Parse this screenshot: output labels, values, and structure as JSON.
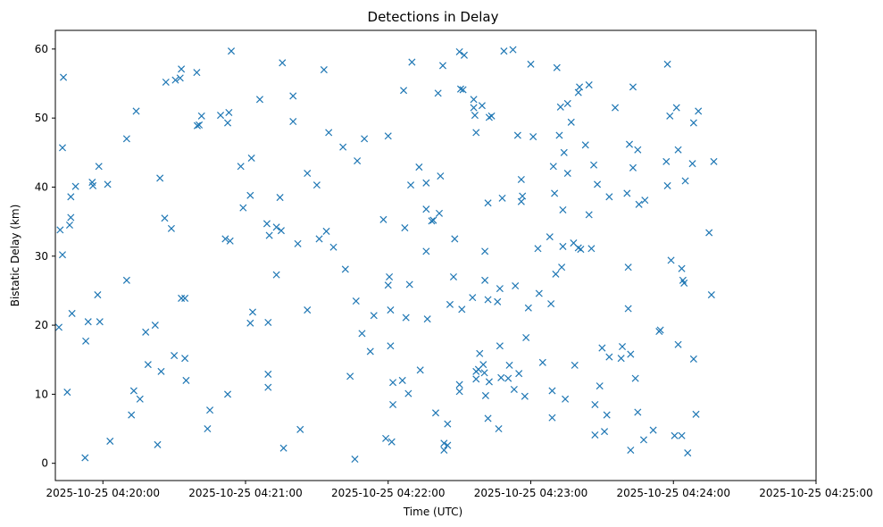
{
  "chart_data": {
    "type": "scatter",
    "title": "Detections in Delay",
    "xlabel": "Time (UTC)",
    "ylabel": "Bistatic Delay (km)",
    "x_unit": "seconds after 2025-10-25 04:20:00 UTC",
    "xlim": [
      -20,
      300
    ],
    "ylim": [
      -2.5,
      62.7
    ],
    "x_ticks": [
      {
        "value": 0,
        "label": "2025-10-25 04:20:00"
      },
      {
        "value": 60,
        "label": "2025-10-25 04:21:00"
      },
      {
        "value": 120,
        "label": "2025-10-25 04:22:00"
      },
      {
        "value": 180,
        "label": "2025-10-25 04:23:00"
      },
      {
        "value": 240,
        "label": "2025-10-25 04:24:00"
      },
      {
        "value": 300,
        "label": "2025-10-25 04:25:00"
      }
    ],
    "y_ticks": [
      {
        "value": 0,
        "label": "0"
      },
      {
        "value": 10,
        "label": "10"
      },
      {
        "value": 20,
        "label": "20"
      },
      {
        "value": 30,
        "label": "30"
      },
      {
        "value": 40,
        "label": "40"
      },
      {
        "value": 50,
        "label": "50"
      },
      {
        "value": 60,
        "label": "60"
      }
    ],
    "marker": "x",
    "color": "#1f77b4",
    "series": [
      {
        "name": "Detections",
        "points": [
          [
            -18.5,
            19.7
          ],
          [
            -18,
            33.8
          ],
          [
            -17,
            30.2
          ],
          [
            -17,
            45.7
          ],
          [
            -16.6,
            55.9
          ],
          [
            -15,
            10.3
          ],
          [
            -14,
            34.5
          ],
          [
            -13.5,
            35.6
          ],
          [
            -13.5,
            38.6
          ],
          [
            -13,
            21.7
          ],
          [
            -11.5,
            40.1
          ],
          [
            -7.5,
            0.8
          ],
          [
            -7.2,
            17.7
          ],
          [
            -6.2,
            20.5
          ],
          [
            -4.5,
            40.7
          ],
          [
            -4.2,
            40.2
          ],
          [
            -2.2,
            24.4
          ],
          [
            -1.7,
            43
          ],
          [
            -1.3,
            20.5
          ],
          [
            2,
            40.4
          ],
          [
            3,
            3.2
          ],
          [
            10,
            47
          ],
          [
            10,
            26.5
          ],
          [
            12,
            7
          ],
          [
            13,
            10.5
          ],
          [
            14,
            51
          ],
          [
            15.6,
            9.3
          ],
          [
            18,
            19
          ],
          [
            19,
            14.3
          ],
          [
            22,
            20
          ],
          [
            23,
            2.7
          ],
          [
            24,
            41.3
          ],
          [
            24.5,
            13.3
          ],
          [
            26,
            35.5
          ],
          [
            26.5,
            55.2
          ],
          [
            28.8,
            34
          ],
          [
            30,
            15.6
          ],
          [
            30.5,
            55.5
          ],
          [
            32.5,
            55.8
          ],
          [
            33,
            57.1
          ],
          [
            33,
            23.9
          ],
          [
            34.5,
            23.9
          ],
          [
            34.5,
            15.2
          ],
          [
            35,
            12
          ],
          [
            39.5,
            56.6
          ],
          [
            39.7,
            48.9
          ],
          [
            40.5,
            49
          ],
          [
            41.5,
            50.3
          ],
          [
            44,
            5
          ],
          [
            45,
            7.7
          ],
          [
            49.5,
            50.4
          ],
          [
            51.5,
            32.5
          ],
          [
            52.5,
            49.3
          ],
          [
            52.5,
            10
          ],
          [
            53,
            50.8
          ],
          [
            53.5,
            32.2
          ],
          [
            54,
            59.7
          ],
          [
            58,
            43
          ],
          [
            59,
            37
          ],
          [
            62,
            20.3
          ],
          [
            62,
            38.8
          ],
          [
            62.5,
            44.2
          ],
          [
            63,
            21.9
          ],
          [
            66,
            52.7
          ],
          [
            69,
            34.7
          ],
          [
            69.5,
            20.4
          ],
          [
            69.5,
            12.9
          ],
          [
            69.5,
            11
          ],
          [
            70,
            33
          ],
          [
            73,
            27.3
          ],
          [
            73,
            34.2
          ],
          [
            74.5,
            38.5
          ],
          [
            75,
            33.7
          ],
          [
            75.5,
            58
          ],
          [
            76,
            2.2
          ],
          [
            80,
            53.2
          ],
          [
            80,
            49.5
          ],
          [
            82,
            31.8
          ],
          [
            83,
            4.9
          ],
          [
            86,
            22.2
          ],
          [
            86,
            42
          ],
          [
            90,
            40.3
          ],
          [
            91,
            32.5
          ],
          [
            93,
            57
          ],
          [
            94,
            33.6
          ],
          [
            95,
            47.9
          ],
          [
            97,
            31.3
          ],
          [
            101,
            45.8
          ],
          [
            102,
            28.1
          ],
          [
            104,
            12.6
          ],
          [
            106,
            0.6
          ],
          [
            106.5,
            23.5
          ],
          [
            107,
            43.8
          ],
          [
            109,
            18.8
          ],
          [
            110,
            47
          ],
          [
            112.5,
            16.2
          ],
          [
            114,
            21.4
          ],
          [
            118,
            35.3
          ],
          [
            119,
            3.6
          ],
          [
            120,
            47.4
          ],
          [
            120,
            25.8
          ],
          [
            120.5,
            27
          ],
          [
            121,
            22.2
          ],
          [
            121,
            17
          ],
          [
            121.5,
            3.1
          ],
          [
            122,
            8.5
          ],
          [
            122,
            11.7
          ],
          [
            126,
            12
          ],
          [
            126.5,
            54
          ],
          [
            127,
            34.1
          ],
          [
            127.5,
            21.1
          ],
          [
            128.5,
            10.1
          ],
          [
            129,
            25.9
          ],
          [
            129.5,
            40.3
          ],
          [
            130,
            58.1
          ],
          [
            133,
            42.9
          ],
          [
            133.5,
            13.5
          ],
          [
            136,
            40.6
          ],
          [
            136,
            36.8
          ],
          [
            136,
            30.7
          ],
          [
            136.5,
            20.9
          ],
          [
            138.3,
            35.1
          ],
          [
            139,
            35.2
          ],
          [
            140,
            7.3
          ],
          [
            141,
            53.6
          ],
          [
            141.5,
            36.2
          ],
          [
            142,
            41.6
          ],
          [
            143,
            57.6
          ],
          [
            143.5,
            2.9
          ],
          [
            143.5,
            1.9
          ],
          [
            145,
            2.6
          ],
          [
            145,
            5.7
          ],
          [
            146,
            23
          ],
          [
            147.5,
            27
          ],
          [
            148,
            32.5
          ],
          [
            150,
            59.6
          ],
          [
            150,
            11.4
          ],
          [
            150,
            10.4
          ],
          [
            150.5,
            54.2
          ],
          [
            151,
            22.3
          ],
          [
            151.5,
            54.1
          ],
          [
            152,
            59.1
          ],
          [
            155.5,
            24
          ],
          [
            156,
            52.7
          ],
          [
            156,
            51.5
          ],
          [
            156.5,
            50.4
          ],
          [
            157,
            47.9
          ],
          [
            157,
            13.3
          ],
          [
            157,
            12.2
          ],
          [
            158,
            13.6
          ],
          [
            158.5,
            15.9
          ],
          [
            159.5,
            51.8
          ],
          [
            160,
            14.3
          ],
          [
            160.5,
            13.1
          ],
          [
            160.7,
            30.7
          ],
          [
            160.7,
            26.5
          ],
          [
            161,
            9.8
          ],
          [
            162,
            37.7
          ],
          [
            162,
            23.7
          ],
          [
            162,
            6.5
          ],
          [
            162.5,
            11.8
          ],
          [
            162.5,
            50.1
          ],
          [
            163.5,
            50.3
          ],
          [
            166,
            23.4
          ],
          [
            166.5,
            5
          ],
          [
            167,
            25.3
          ],
          [
            167,
            17
          ],
          [
            167.5,
            12.4
          ],
          [
            168,
            38.4
          ],
          [
            168.7,
            59.7
          ],
          [
            170.5,
            12.3
          ],
          [
            171,
            14.2
          ],
          [
            172.5,
            59.9
          ],
          [
            173,
            10.7
          ],
          [
            173.5,
            25.7
          ],
          [
            174.5,
            47.5
          ],
          [
            175,
            13
          ],
          [
            176,
            41.1
          ],
          [
            176,
            37.9
          ],
          [
            176.5,
            38.7
          ],
          [
            177.5,
            9.7
          ],
          [
            178,
            18.2
          ],
          [
            179,
            22.5
          ],
          [
            180,
            57.8
          ],
          [
            181,
            47.3
          ],
          [
            183,
            31.1
          ],
          [
            183.5,
            24.6
          ],
          [
            185,
            14.6
          ],
          [
            188,
            32.8
          ],
          [
            188.5,
            23.1
          ],
          [
            189,
            10.5
          ],
          [
            189,
            6.6
          ],
          [
            189.5,
            43
          ],
          [
            190,
            39.1
          ],
          [
            190.5,
            27.4
          ],
          [
            191,
            57.3
          ],
          [
            192,
            47.5
          ],
          [
            192.5,
            51.6
          ],
          [
            193,
            28.4
          ],
          [
            193.5,
            36.7
          ],
          [
            193.5,
            31.4
          ],
          [
            194,
            45
          ],
          [
            194.5,
            9.3
          ],
          [
            195.5,
            52.1
          ],
          [
            195.5,
            42
          ],
          [
            197,
            49.4
          ],
          [
            198,
            31.9
          ],
          [
            198.5,
            14.2
          ],
          [
            200,
            53.7
          ],
          [
            200,
            31.2
          ],
          [
            200.5,
            54.5
          ],
          [
            201,
            31
          ],
          [
            203,
            46.1
          ],
          [
            204.5,
            54.8
          ],
          [
            204.5,
            36
          ],
          [
            205.5,
            31.1
          ],
          [
            206.5,
            43.2
          ],
          [
            207,
            8.5
          ],
          [
            207,
            4.1
          ],
          [
            208,
            40.4
          ],
          [
            209,
            11.2
          ],
          [
            210,
            16.7
          ],
          [
            211,
            4.6
          ],
          [
            212,
            7
          ],
          [
            213,
            15.4
          ],
          [
            213,
            38.6
          ],
          [
            215.5,
            51.5
          ],
          [
            218,
            15.2
          ],
          [
            218.5,
            16.9
          ],
          [
            220.5,
            39.1
          ],
          [
            221,
            28.4
          ],
          [
            221,
            22.4
          ],
          [
            221.5,
            46.2
          ],
          [
            222,
            15.8
          ],
          [
            222,
            1.9
          ],
          [
            223,
            42.8
          ],
          [
            223,
            54.5
          ],
          [
            224,
            12.3
          ],
          [
            225,
            45.4
          ],
          [
            225,
            7.4
          ],
          [
            225.5,
            37.5
          ],
          [
            227.5,
            3.4
          ],
          [
            228,
            38.1
          ],
          [
            231.5,
            4.8
          ],
          [
            234,
            19.1
          ],
          [
            234.5,
            19.3
          ],
          [
            237,
            43.7
          ],
          [
            237.5,
            40.2
          ],
          [
            237.5,
            57.8
          ],
          [
            238.5,
            50.3
          ],
          [
            239,
            29.4
          ],
          [
            240.5,
            4
          ],
          [
            241.3,
            51.5
          ],
          [
            242,
            45.4
          ],
          [
            242,
            17.2
          ],
          [
            243.5,
            28.2
          ],
          [
            243.5,
            4
          ],
          [
            244,
            26.5
          ],
          [
            244.5,
            26.1
          ],
          [
            245,
            40.9
          ],
          [
            246,
            1.5
          ],
          [
            248,
            43.4
          ],
          [
            248.5,
            49.3
          ],
          [
            248.5,
            15.1
          ],
          [
            249.5,
            7.1
          ],
          [
            250.5,
            51
          ],
          [
            255,
            33.4
          ],
          [
            256,
            24.4
          ],
          [
            257,
            43.7
          ]
        ]
      }
    ]
  }
}
